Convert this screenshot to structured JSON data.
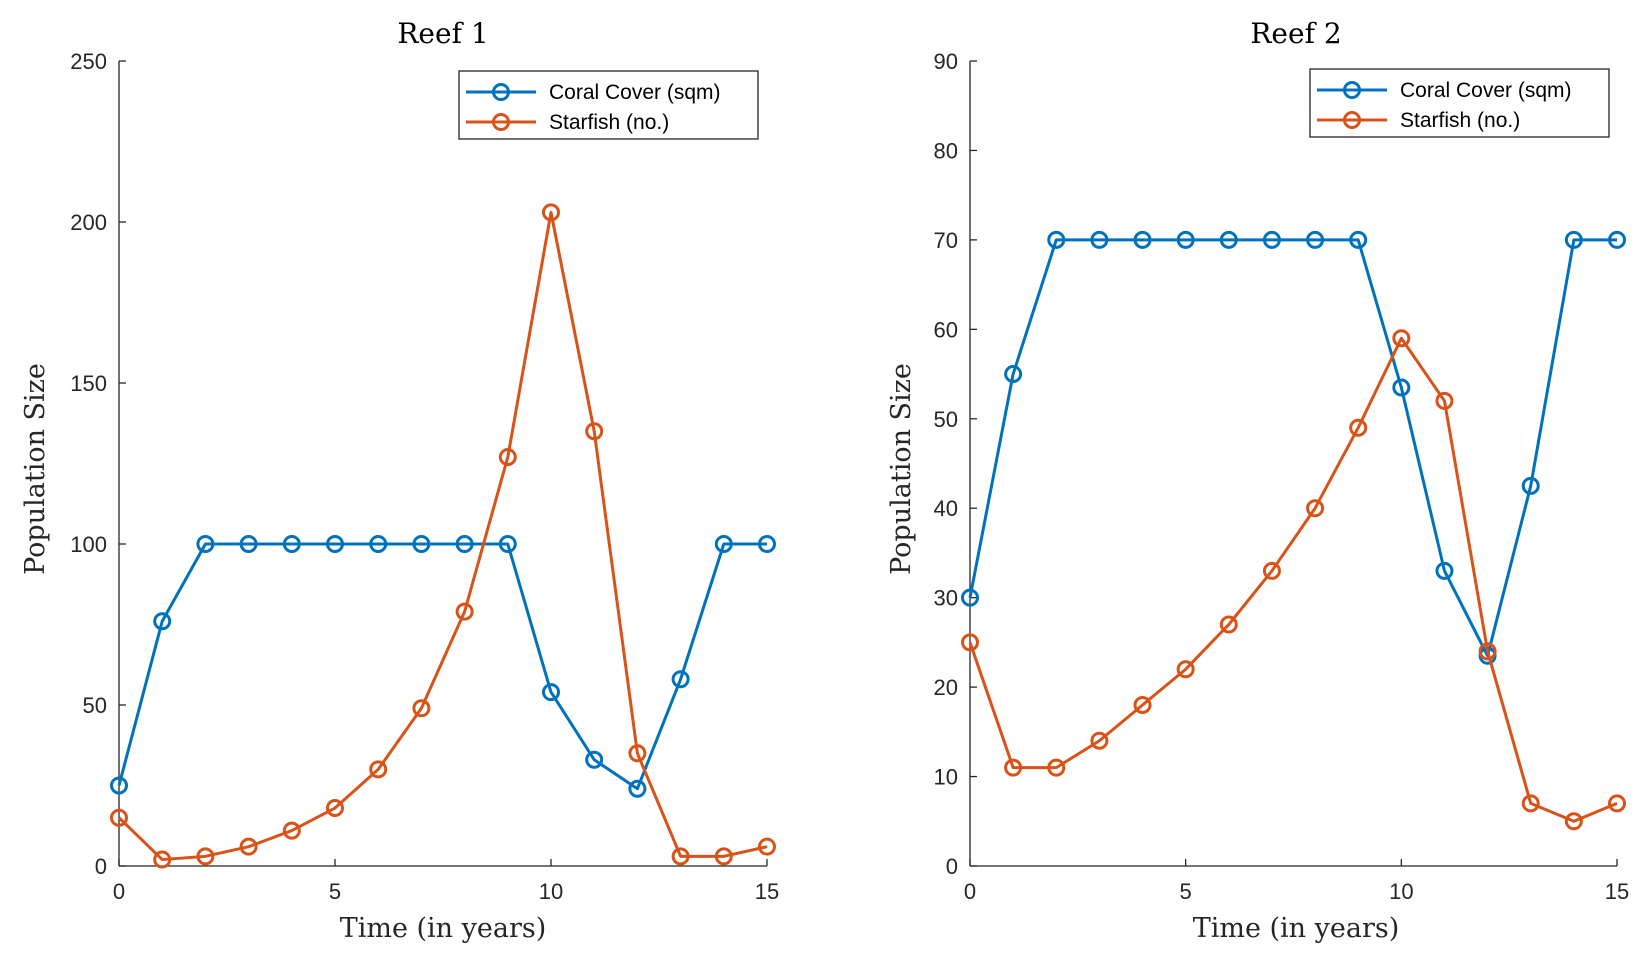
{
  "chart_data": [
    {
      "type": "line",
      "title": "Reef 1",
      "xlabel": "Time (in years)",
      "ylabel": "Population Size",
      "xlim": [
        0,
        15
      ],
      "ylim": [
        0,
        250
      ],
      "xticks": [
        0,
        5,
        10,
        15
      ],
      "yticks": [
        0,
        50,
        100,
        150,
        200,
        250
      ],
      "grid": false,
      "legend_position": "top-right",
      "x": [
        0,
        1,
        2,
        3,
        4,
        5,
        6,
        7,
        8,
        9,
        10,
        11,
        12,
        13,
        14,
        15
      ],
      "series": [
        {
          "name": "Coral Cover (sqm)",
          "color": "#0072BD",
          "marker": "circle",
          "values": [
            25,
            76,
            100,
            100,
            100,
            100,
            100,
            100,
            100,
            100,
            54,
            33,
            24,
            58,
            100,
            100
          ]
        },
        {
          "name": "Starfish (no.)",
          "color": "#D95319",
          "marker": "circle",
          "values": [
            15,
            2,
            3,
            6,
            11,
            18,
            30,
            49,
            79,
            127,
            203,
            135,
            35,
            3,
            3,
            6
          ]
        }
      ]
    },
    {
      "type": "line",
      "title": "Reef 2",
      "xlabel": "Time (in years)",
      "ylabel": "Population Size",
      "xlim": [
        0,
        15
      ],
      "ylim": [
        0,
        90
      ],
      "xticks": [
        0,
        5,
        10,
        15
      ],
      "yticks": [
        0,
        10,
        20,
        30,
        40,
        50,
        60,
        70,
        80,
        90
      ],
      "grid": false,
      "legend_position": "top-right",
      "x": [
        0,
        1,
        2,
        3,
        4,
        5,
        6,
        7,
        8,
        9,
        10,
        11,
        12,
        13,
        14,
        15
      ],
      "series": [
        {
          "name": "Coral Cover (sqm)",
          "color": "#0072BD",
          "marker": "circle",
          "values": [
            30,
            55,
            70,
            70,
            70,
            70,
            70,
            70,
            70,
            70,
            53.5,
            33,
            23.5,
            42.5,
            70,
            70
          ]
        },
        {
          "name": "Starfish (no.)",
          "color": "#D95319",
          "marker": "circle",
          "values": [
            25,
            11,
            11,
            14,
            18,
            22,
            27,
            33,
            40,
            49,
            59,
            52,
            24,
            7,
            5,
            7
          ]
        }
      ]
    }
  ]
}
